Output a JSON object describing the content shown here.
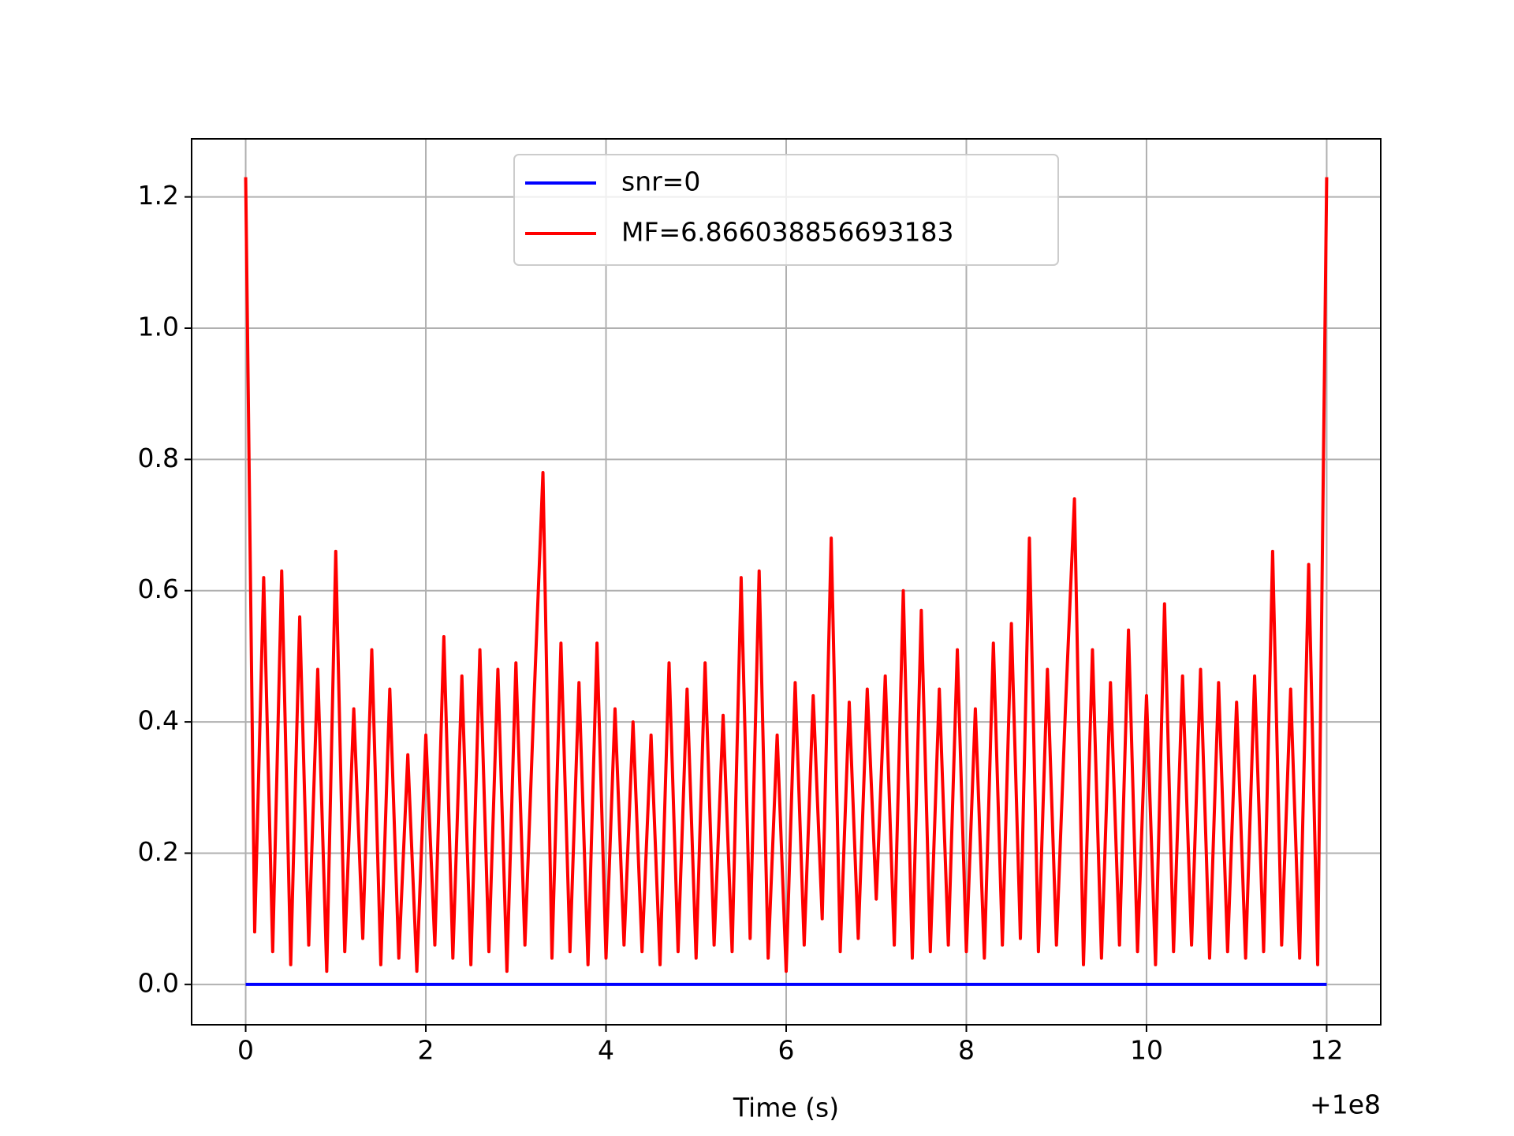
{
  "chart_data": {
    "type": "line",
    "xlabel": "Time (s)",
    "x_offset_label": "+1e8",
    "xlim": [
      -0.6,
      12.6
    ],
    "ylim": [
      -0.0615,
      1.2885
    ],
    "xticks": [
      0,
      2,
      4,
      6,
      8,
      10,
      12
    ],
    "yticks": [
      {
        "value": 0,
        "label": "0.0"
      },
      0.2,
      0.4,
      0.6,
      0.8,
      {
        "value": 1,
        "label": "1.0"
      },
      1.2
    ],
    "grid": true,
    "legend": "upper center",
    "series": [
      {
        "name": "snr=0",
        "color": "#0000ff",
        "x": [
          0,
          12
        ],
        "values": [
          0,
          0
        ]
      },
      {
        "name": "MF=6.866038856693183",
        "color": "#ff0000",
        "x": [
          0,
          0.1,
          0.2,
          0.3,
          0.4,
          0.5,
          0.6,
          0.7,
          0.8,
          0.9,
          1,
          1.1,
          1.2,
          1.3,
          1.4,
          1.5,
          1.6,
          1.7,
          1.8,
          1.9,
          2,
          2.1,
          2.2,
          2.3,
          2.4,
          2.5,
          2.6,
          2.7,
          2.8,
          2.9,
          3,
          3.1,
          3.2,
          3.3,
          3.4,
          3.5,
          3.6,
          3.7,
          3.8,
          3.9,
          4,
          4.1,
          4.2,
          4.3,
          4.4,
          4.5,
          4.6,
          4.7,
          4.8,
          4.9,
          5,
          5.1,
          5.2,
          5.3,
          5.4,
          5.5,
          5.6,
          5.7,
          5.8,
          5.9,
          6,
          6.1,
          6.2,
          6.3,
          6.4,
          6.5,
          6.6,
          6.7,
          6.8,
          6.9,
          7,
          7.1,
          7.2,
          7.3,
          7.4,
          7.5,
          7.6,
          7.7,
          7.8,
          7.9,
          8,
          8.1,
          8.2,
          8.3,
          8.4,
          8.5,
          8.6,
          8.7,
          8.8,
          8.9,
          9,
          9.1,
          9.2,
          9.3,
          9.4,
          9.5,
          9.6,
          9.7,
          9.8,
          9.9,
          10,
          10.1,
          10.2,
          10.3,
          10.4,
          10.5,
          10.6,
          10.7,
          10.8,
          10.9,
          11,
          11.1,
          11.2,
          11.3,
          11.4,
          11.5,
          11.6,
          11.7,
          11.8,
          11.9,
          12
        ],
        "values": [
          1.23,
          0.08,
          0.62,
          0.05,
          0.63,
          0.03,
          0.56,
          0.06,
          0.48,
          0.02,
          0.66,
          0.05,
          0.42,
          0.07,
          0.51,
          0.03,
          0.45,
          0.04,
          0.35,
          0.02,
          0.38,
          0.06,
          0.53,
          0.04,
          0.47,
          0.03,
          0.51,
          0.05,
          0.48,
          0.02,
          0.49,
          0.06,
          0.43,
          0.78,
          0.04,
          0.52,
          0.05,
          0.46,
          0.03,
          0.52,
          0.04,
          0.42,
          0.06,
          0.4,
          0.05,
          0.38,
          0.03,
          0.49,
          0.05,
          0.45,
          0.04,
          0.49,
          0.06,
          0.41,
          0.05,
          0.62,
          0.07,
          0.63,
          0.04,
          0.38,
          0.02,
          0.46,
          0.06,
          0.44,
          0.1,
          0.68,
          0.05,
          0.43,
          0.07,
          0.45,
          0.13,
          0.47,
          0.06,
          0.6,
          0.04,
          0.57,
          0.05,
          0.45,
          0.06,
          0.51,
          0.05,
          0.42,
          0.04,
          0.52,
          0.06,
          0.55,
          0.07,
          0.68,
          0.05,
          0.48,
          0.06,
          0.42,
          0.74,
          0.03,
          0.51,
          0.04,
          0.46,
          0.06,
          0.54,
          0.05,
          0.44,
          0.03,
          0.58,
          0.05,
          0.47,
          0.06,
          0.48,
          0.04,
          0.46,
          0.05,
          0.43,
          0.04,
          0.47,
          0.05,
          0.66,
          0.06,
          0.45,
          0.04,
          0.64,
          0.03,
          1.23
        ]
      }
    ]
  }
}
